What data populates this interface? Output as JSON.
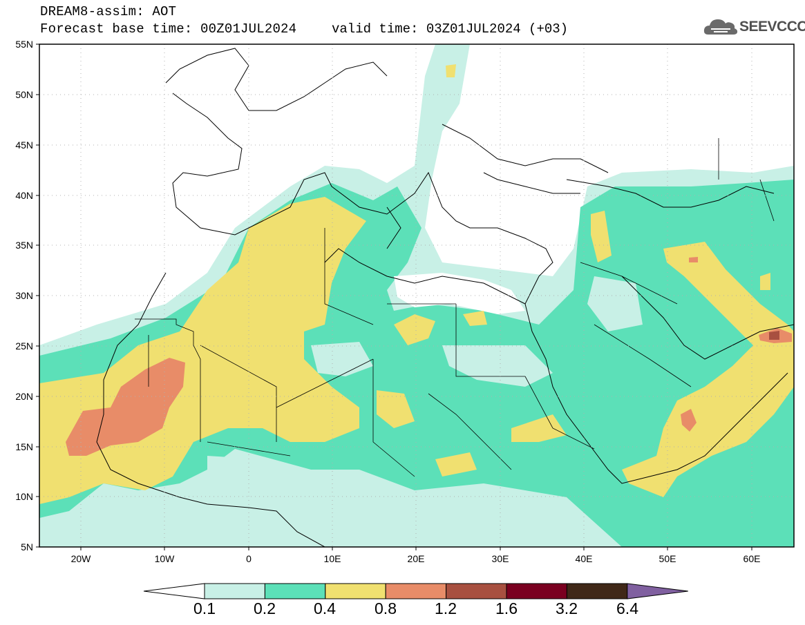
{
  "header": {
    "title": "DREAM8-assim: AOT",
    "base_time": "Forecast base time: 00Z01JUL2024",
    "valid_time": "valid time: 03Z01JUL2024 (+03)"
  },
  "logo": {
    "text": "SEEVCCC",
    "icon": "cloud-icon"
  },
  "map": {
    "lon_range": [
      -25,
      65
    ],
    "lat_range": [
      5,
      55
    ],
    "lat_labels": [
      "55N",
      "50N",
      "45N",
      "40N",
      "35N",
      "30N",
      "25N",
      "20N",
      "15N",
      "10N",
      "5N"
    ],
    "lon_labels": [
      "20W",
      "10W",
      "0",
      "10E",
      "20E",
      "30E",
      "40E",
      "50E",
      "60E"
    ],
    "grid": true
  },
  "legend": {
    "ticks": [
      "0.1",
      "0.2",
      "0.4",
      "0.8",
      "1.2",
      "1.6",
      "3.2",
      "6.4"
    ],
    "colors": [
      "#c8f0e6",
      "#5ce0b8",
      "#f0e070",
      "#e88c68",
      "#a85040",
      "#7a0020",
      "#402818"
    ],
    "under_color": "#ffffff",
    "over_color": "#8060a0"
  }
}
